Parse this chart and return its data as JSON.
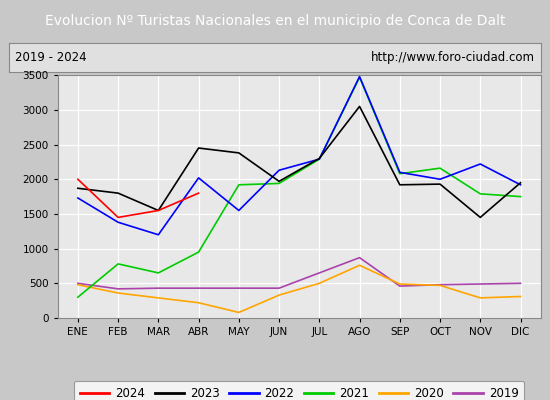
{
  "title": "Evolucion Nº Turistas Nacionales en el municipio de Conca de Dalt",
  "subtitle_left": "2019 - 2024",
  "subtitle_right": "http://www.foro-ciudad.com",
  "months": [
    "ENE",
    "FEB",
    "MAR",
    "ABR",
    "MAY",
    "JUN",
    "JUL",
    "AGO",
    "SEP",
    "OCT",
    "NOV",
    "DIC"
  ],
  "series": {
    "2024": [
      2000,
      1450,
      1550,
      1800,
      null,
      null,
      null,
      null,
      null,
      null,
      null,
      null
    ],
    "2023": [
      1870,
      1800,
      1550,
      2450,
      2380,
      1970,
      2300,
      3050,
      1920,
      1930,
      1450,
      1950
    ],
    "2022": [
      1730,
      1380,
      1200,
      2020,
      1550,
      2130,
      2290,
      3480,
      2100,
      2000,
      2220,
      1920
    ],
    "2021": [
      300,
      780,
      650,
      950,
      1920,
      1940,
      2290,
      3470,
      2080,
      2160,
      1790,
      1750
    ],
    "2020": [
      480,
      360,
      290,
      220,
      80,
      330,
      500,
      760,
      490,
      470,
      290,
      310
    ],
    "2019": [
      500,
      420,
      430,
      430,
      430,
      430,
      650,
      870,
      460,
      480,
      490,
      500
    ]
  },
  "colors": {
    "2024": "#ff0000",
    "2023": "#000000",
    "2022": "#0000ff",
    "2021": "#00cc00",
    "2020": "#ffa500",
    "2019": "#aa44aa"
  },
  "ylim": [
    0,
    3500
  ],
  "yticks": [
    0,
    500,
    1000,
    1500,
    2000,
    2500,
    3000,
    3500
  ],
  "title_bg_color": "#4e7fc4",
  "title_font_color": "#ffffff",
  "plot_bg_color": "#e8e8e8",
  "outer_bg_color": "#c8c8c8",
  "grid_color": "#ffffff",
  "subtitle_bg_color": "#e0e0e0"
}
